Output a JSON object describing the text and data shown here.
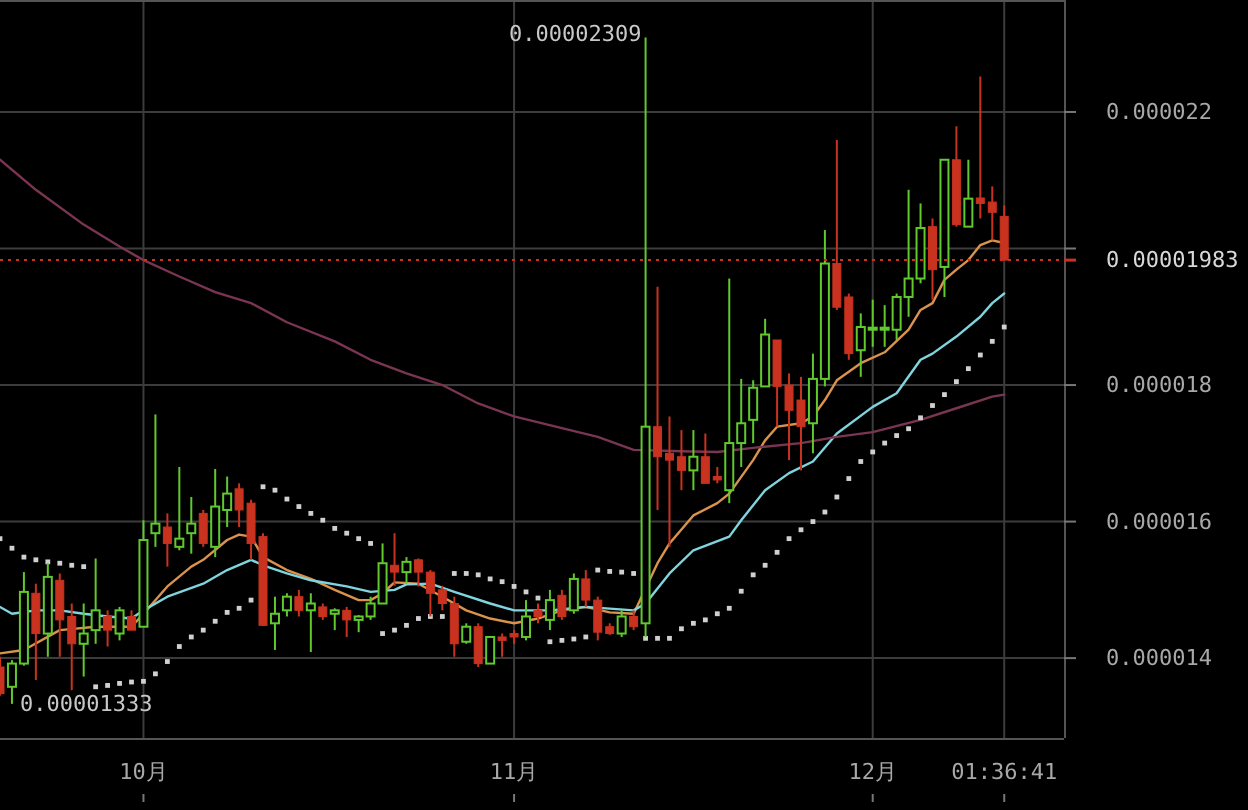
{
  "chart_data": {
    "type": "candlestick",
    "x": [
      "--09-19",
      "--09-20",
      "--09-21",
      "--09-22",
      "--09-23",
      "--09-24",
      "--09-25",
      "--09-26",
      "--09-27",
      "--09-28",
      "--09-29",
      "--09-30",
      "--10-01",
      "--10-02",
      "--10-03",
      "--10-04",
      "--10-05",
      "--10-06",
      "--10-07",
      "--10-08",
      "--10-09",
      "--10-10",
      "--10-11",
      "--10-12",
      "--10-13",
      "--10-14",
      "--10-15",
      "--10-16",
      "--10-17",
      "--10-18",
      "--10-19",
      "--10-20",
      "--10-21",
      "--10-22",
      "--10-23",
      "--10-24",
      "--10-25",
      "--10-26",
      "--10-27",
      "--10-28",
      "--10-29",
      "--10-30",
      "--10-31",
      "--11-01",
      "--11-02",
      "--11-03",
      "--11-04",
      "--11-05",
      "--11-06",
      "--11-07",
      "--11-08",
      "--11-09",
      "--11-10",
      "--11-11",
      "--11-12",
      "--11-13",
      "--11-14",
      "--11-15",
      "--11-16",
      "--11-17",
      "--11-18",
      "--11-19",
      "--11-20",
      "--11-21",
      "--11-22",
      "--11-23",
      "--11-24",
      "--11-25",
      "--11-26",
      "--11-27",
      "--11-28",
      "--11-29",
      "--11-30",
      "--12-01",
      "--12-02",
      "--12-03",
      "--12-04",
      "--12-05",
      "--12-06",
      "--12-07",
      "--12-08",
      "--12-09",
      "--12-10",
      "--12-11",
      "--12-12"
    ],
    "ohlc": [
      [
        1.387e-05,
        1.402e-05,
        1.345e-05,
        1.348e-05
      ],
      [
        1.358e-05,
        1.397e-05,
        1.333e-05,
        1.392e-05
      ],
      [
        1.392e-05,
        1.526e-05,
        1.389e-05,
        1.497e-05
      ],
      [
        1.495e-05,
        1.509e-05,
        1.368e-05,
        1.436e-05
      ],
      [
        1.436e-05,
        1.539e-05,
        1.402e-05,
        1.519e-05
      ],
      [
        1.514e-05,
        1.524e-05,
        1.402e-05,
        1.456e-05
      ],
      [
        1.461e-05,
        1.48e-05,
        1.353e-05,
        1.421e-05
      ],
      [
        1.421e-05,
        1.48e-05,
        1.373e-05,
        1.436e-05
      ],
      [
        1.441e-05,
        1.546e-05,
        1.421e-05,
        1.47e-05
      ],
      [
        1.461e-05,
        1.47e-05,
        1.417e-05,
        1.441e-05
      ],
      [
        1.436e-05,
        1.475e-05,
        1.426e-05,
        1.47e-05
      ],
      [
        1.461e-05,
        1.47e-05,
        1.441e-05,
        1.441e-05
      ],
      [
        1.446e-05,
        1.602e-05,
        1.446e-05,
        1.573e-05
      ],
      [
        1.583e-05,
        1.757e-05,
        1.563e-05,
        1.597e-05
      ],
      [
        1.592e-05,
        1.612e-05,
        1.534e-05,
        1.568e-05
      ],
      [
        1.563e-05,
        1.68e-05,
        1.558e-05,
        1.575e-05
      ],
      [
        1.583e-05,
        1.636e-05,
        1.553e-05,
        1.597e-05
      ],
      [
        1.612e-05,
        1.617e-05,
        1.563e-05,
        1.568e-05
      ],
      [
        1.563e-05,
        1.677e-05,
        1.548e-05,
        1.622e-05
      ],
      [
        1.617e-05,
        1.666e-05,
        1.592e-05,
        1.641e-05
      ],
      [
        1.648e-05,
        1.656e-05,
        1.592e-05,
        1.617e-05
      ],
      [
        1.627e-05,
        1.632e-05,
        1.544e-05,
        1.568e-05
      ],
      [
        1.578e-05,
        1.583e-05,
        1.448e-05,
        1.448e-05
      ],
      [
        1.451e-05,
        1.49e-05,
        1.412e-05,
        1.465e-05
      ],
      [
        1.47e-05,
        1.495e-05,
        1.461e-05,
        1.49e-05
      ],
      [
        1.49e-05,
        1.5e-05,
        1.461e-05,
        1.47e-05
      ],
      [
        1.47e-05,
        1.495e-05,
        1.409e-05,
        1.48e-05
      ],
      [
        1.475e-05,
        1.48e-05,
        1.456e-05,
        1.461e-05
      ],
      [
        1.465e-05,
        1.473e-05,
        1.441e-05,
        1.47e-05
      ],
      [
        1.47e-05,
        1.475e-05,
        1.431e-05,
        1.456e-05
      ],
      [
        1.456e-05,
        1.463e-05,
        1.438e-05,
        1.461e-05
      ],
      [
        1.461e-05,
        1.49e-05,
        1.456e-05,
        1.48e-05
      ],
      [
        1.48e-05,
        1.568e-05,
        1.48e-05,
        1.539e-05
      ],
      [
        1.536e-05,
        1.583e-05,
        1.506e-05,
        1.526e-05
      ],
      [
        1.526e-05,
        1.548e-05,
        1.509e-05,
        1.541e-05
      ],
      [
        1.544e-05,
        1.546e-05,
        1.505e-05,
        1.526e-05
      ],
      [
        1.526e-05,
        1.529e-05,
        1.461e-05,
        1.495e-05
      ],
      [
        1.5e-05,
        1.506e-05,
        1.47e-05,
        1.48e-05
      ],
      [
        1.48e-05,
        1.49e-05,
        1.402e-05,
        1.421e-05
      ],
      [
        1.424e-05,
        1.451e-05,
        1.421e-05,
        1.446e-05
      ],
      [
        1.446e-05,
        1.451e-05,
        1.387e-05,
        1.392e-05
      ],
      [
        1.392e-05,
        1.431e-05,
        1.392e-05,
        1.431e-05
      ],
      [
        1.431e-05,
        1.436e-05,
        1.402e-05,
        1.426e-05
      ],
      [
        1.436e-05,
        1.441e-05,
        1.421e-05,
        1.431e-05
      ],
      [
        1.431e-05,
        1.485e-05,
        1.426e-05,
        1.461e-05
      ],
      [
        1.47e-05,
        1.48e-05,
        1.451e-05,
        1.461e-05
      ],
      [
        1.456e-05,
        1.5e-05,
        1.441e-05,
        1.485e-05
      ],
      [
        1.492e-05,
        1.5e-05,
        1.456e-05,
        1.461e-05
      ],
      [
        1.47e-05,
        1.524e-05,
        1.465e-05,
        1.516e-05
      ],
      [
        1.516e-05,
        1.529e-05,
        1.475e-05,
        1.485e-05
      ],
      [
        1.485e-05,
        1.49e-05,
        1.426e-05,
        1.438e-05
      ],
      [
        1.446e-05,
        1.451e-05,
        1.434e-05,
        1.436e-05
      ],
      [
        1.436e-05,
        1.47e-05,
        1.431e-05,
        1.461e-05
      ],
      [
        1.461e-05,
        1.47e-05,
        1.441e-05,
        1.446e-05
      ],
      [
        1.451e-05,
        2.309e-05,
        1.431e-05,
        1.739e-05
      ],
      [
        1.739e-05,
        1.944e-05,
        1.617e-05,
        1.695e-05
      ],
      [
        1.7e-05,
        1.754e-05,
        1.563e-05,
        1.69e-05
      ],
      [
        1.695e-05,
        1.734e-05,
        1.646e-05,
        1.675e-05
      ],
      [
        1.675e-05,
        1.734e-05,
        1.646e-05,
        1.695e-05
      ],
      [
        1.695e-05,
        1.729e-05,
        1.656e-05,
        1.656e-05
      ],
      [
        1.666e-05,
        1.68e-05,
        1.656e-05,
        1.661e-05
      ],
      [
        1.646e-05,
        1.956e-05,
        1.627e-05,
        1.715e-05
      ],
      [
        1.715e-05,
        1.809e-05,
        1.68e-05,
        1.744e-05
      ],
      [
        1.749e-05,
        1.807e-05,
        1.715e-05,
        1.796e-05
      ],
      [
        1.798e-05,
        1.897e-05,
        1.798e-05,
        1.874e-05
      ],
      [
        1.866e-05,
        1.866e-05,
        1.739e-05,
        1.798e-05
      ],
      [
        1.8e-05,
        1.817e-05,
        1.69e-05,
        1.763e-05
      ],
      [
        1.778e-05,
        1.812e-05,
        1.675e-05,
        1.739e-05
      ],
      [
        1.744e-05,
        1.846e-05,
        1.7e-05,
        1.809e-05
      ],
      [
        1.809e-05,
        2.027e-05,
        1.798e-05,
        1.978e-05
      ],
      [
        1.978e-05,
        2.159e-05,
        1.91e-05,
        1.914e-05
      ],
      [
        1.929e-05,
        1.934e-05,
        1.837e-05,
        1.846e-05
      ],
      [
        1.851e-05,
        1.905e-05,
        1.812e-05,
        1.885e-05
      ],
      [
        1.882e-05,
        1.925e-05,
        1.856e-05,
        1.884e-05
      ],
      [
        1.882e-05,
        1.917e-05,
        1.856e-05,
        1.884e-05
      ],
      [
        1.881e-05,
        1.934e-05,
        1.866e-05,
        1.929e-05
      ],
      [
        1.929e-05,
        2.086e-05,
        1.9e-05,
        1.956e-05
      ],
      [
        1.956e-05,
        2.066e-05,
        1.949e-05,
        2.03e-05
      ],
      [
        2.032e-05,
        2.044e-05,
        1.925e-05,
        1.969e-05
      ],
      [
        1.973e-05,
        2.13e-05,
        1.929e-05,
        2.13e-05
      ],
      [
        2.13e-05,
        2.179e-05,
        2.032e-05,
        2.035e-05
      ],
      [
        2.032e-05,
        2.13e-05,
        2.032e-05,
        2.073e-05
      ],
      [
        2.074e-05,
        2.252e-05,
        2.044e-05,
        2.066e-05
      ],
      [
        2.068e-05,
        2.091e-05,
        2.012e-05,
        2.053e-05
      ],
      [
        2.047e-05,
        2.063e-05,
        1.983e-05,
        1.983e-05
      ]
    ],
    "colors": [
      "#c8321e",
      "#5fc92e",
      "#5fc92e",
      "#c8321e",
      "#5fc92e",
      "#c8321e",
      "#c8321e",
      "#5fc92e",
      "#5fc92e",
      "#c8321e",
      "#5fc92e",
      "#c8321e",
      "#5fc92e",
      "#5fc92e",
      "#c8321e",
      "#5fc92e",
      "#5fc92e",
      "#c8321e",
      "#5fc92e",
      "#5fc92e",
      "#c8321e",
      "#c8321e",
      "#c8321e",
      "#5fc92e",
      "#5fc92e",
      "#c8321e",
      "#5fc92e",
      "#c8321e",
      "#5fc92e",
      "#c8321e",
      "#5fc92e",
      "#5fc92e",
      "#5fc92e",
      "#c8321e",
      "#5fc92e",
      "#c8321e",
      "#c8321e",
      "#c8321e",
      "#c8321e",
      "#5fc92e",
      "#c8321e",
      "#5fc92e",
      "#c8321e",
      "#c8321e",
      "#5fc92e",
      "#c8321e",
      "#5fc92e",
      "#c8321e",
      "#5fc92e",
      "#c8321e",
      "#c8321e",
      "#c8321e",
      "#5fc92e",
      "#c8321e",
      "#5fc92e",
      "#c8321e",
      "#c8321e",
      "#c8321e",
      "#5fc92e",
      "#c8321e",
      "#c8321e",
      "#5fc92e",
      "#5fc92e",
      "#5fc92e",
      "#5fc92e",
      "#c8321e",
      "#c8321e",
      "#c8321e",
      "#5fc92e",
      "#5fc92e",
      "#c8321e",
      "#c8321e",
      "#5fc92e",
      "#5fc92e",
      "#5fc92e",
      "#5fc92e",
      "#5fc92e",
      "#5fc92e",
      "#c8321e",
      "#5fc92e",
      "#c8321e",
      "#5fc92e",
      "#c8321e",
      "#c8321e",
      "#c8321e"
    ],
    "series": [
      {
        "type": "line",
        "color": "#d9934c",
        "x": [
          "--09-19",
          "--09-21",
          "--09-24",
          "--09-27",
          "--09-30",
          "--10-01",
          "--10-03",
          "--10-05",
          "--10-06",
          "--10-08",
          "--10-09",
          "--10-10",
          "--10-11",
          "--10-13",
          "--10-15",
          "--10-17",
          "--10-19",
          "--10-20",
          "--10-21",
          "--10-22",
          "--10-24",
          "--10-26",
          "--10-28",
          "--10-30",
          "--11-01",
          "--11-03",
          "--11-05",
          "--11-07",
          "--11-09",
          "--11-11",
          "--11-13",
          "--11-14",
          "--11-16",
          "--11-18",
          "--11-19",
          "--11-21",
          "--11-22",
          "--11-23",
          "--11-25",
          "--11-26",
          "--11-27",
          "--11-28",
          "--11-30",
          "--12-02",
          "--12-04",
          "--12-05",
          "--12-06",
          "--12-07",
          "--12-08",
          "--12-09",
          "--12-10",
          "--12-11",
          "--12-12"
        ],
        "values": [
          1.407e-05,
          1.412e-05,
          1.441e-05,
          1.446e-05,
          1.446e-05,
          1.465e-05,
          1.505e-05,
          1.534e-05,
          1.544e-05,
          1.573e-05,
          1.581e-05,
          1.578e-05,
          1.548e-05,
          1.529e-05,
          1.516e-05,
          1.5e-05,
          1.485e-05,
          1.485e-05,
          1.495e-05,
          1.511e-05,
          1.509e-05,
          1.49e-05,
          1.47e-05,
          1.458e-05,
          1.451e-05,
          1.458e-05,
          1.47e-05,
          1.475e-05,
          1.467e-05,
          1.465e-05,
          1.539e-05,
          1.568e-05,
          1.609e-05,
          1.627e-05,
          1.641e-05,
          1.69e-05,
          1.719e-05,
          1.739e-05,
          1.744e-05,
          1.754e-05,
          1.778e-05,
          1.807e-05,
          1.832e-05,
          1.848e-05,
          1.881e-05,
          1.91e-05,
          1.92e-05,
          1.954e-05,
          1.969e-05,
          1.983e-05,
          2.005e-05,
          2.012e-05,
          2.008e-05
        ]
      },
      {
        "type": "line",
        "color": "#80d4de",
        "x": [
          "--09-19",
          "--09-20",
          "--09-22",
          "--09-24",
          "--09-26",
          "--09-28",
          "--09-30",
          "--10-01",
          "--10-03",
          "--10-06",
          "--10-08",
          "--10-10",
          "--10-11",
          "--10-13",
          "--10-15",
          "--10-18",
          "--10-20",
          "--10-22",
          "--10-23",
          "--10-25",
          "--10-27",
          "--10-30",
          "--11-01",
          "--11-04",
          "--11-07",
          "--11-11",
          "--11-12",
          "--11-14",
          "--11-16",
          "--11-19",
          "--11-20",
          "--11-22",
          "--11-24",
          "--11-26",
          "--11-28",
          "--12-01",
          "--12-03",
          "--12-05",
          "--12-06",
          "--12-08",
          "--12-10",
          "--12-11",
          "--12-12"
        ],
        "values": [
          1.475e-05,
          1.465e-05,
          1.47e-05,
          1.47e-05,
          1.465e-05,
          1.461e-05,
          1.458e-05,
          1.47e-05,
          1.49e-05,
          1.509e-05,
          1.529e-05,
          1.544e-05,
          1.536e-05,
          1.524e-05,
          1.514e-05,
          1.505e-05,
          1.497e-05,
          1.5e-05,
          1.508e-05,
          1.509e-05,
          1.497e-05,
          1.48e-05,
          1.47e-05,
          1.47e-05,
          1.475e-05,
          1.47e-05,
          1.48e-05,
          1.524e-05,
          1.558e-05,
          1.578e-05,
          1.602e-05,
          1.646e-05,
          1.671e-05,
          1.688e-05,
          1.729e-05,
          1.768e-05,
          1.788e-05,
          1.837e-05,
          1.846e-05,
          1.871e-05,
          1.9e-05,
          1.92e-05,
          1.934e-05
        ]
      },
      {
        "type": "line",
        "color": "#7a3552",
        "x": [
          "--09-19",
          "--09-22",
          "--09-26",
          "--09-29",
          "--10-01",
          "--10-04",
          "--10-07",
          "--10-10",
          "--10-13",
          "--10-17",
          "--10-20",
          "--10-23",
          "--10-26",
          "--10-29",
          "--11-01",
          "--11-05",
          "--11-08",
          "--11-11",
          "--11-15",
          "--11-18",
          "--11-21",
          "--11-25",
          "--11-28",
          "--12-01",
          "--12-05",
          "--12-08",
          "--12-11",
          "--12-12"
        ],
        "values": [
          2.13e-05,
          2.086e-05,
          2.035e-05,
          2.003e-05,
          1.983e-05,
          1.959e-05,
          1.936e-05,
          1.92e-05,
          1.892e-05,
          1.864e-05,
          1.837e-05,
          1.817e-05,
          1.8e-05,
          1.773e-05,
          1.754e-05,
          1.737e-05,
          1.724e-05,
          1.705e-05,
          1.703e-05,
          1.702e-05,
          1.708e-05,
          1.715e-05,
          1.724e-05,
          1.731e-05,
          1.749e-05,
          1.766e-05,
          1.783e-05,
          1.786e-05
        ]
      },
      {
        "type": "scatter",
        "marker": "square",
        "color": "#d0d0d0",
        "values": [
          1.575e-05,
          1.561e-05,
          1.548e-05,
          1.544e-05,
          1.541e-05,
          1.539e-05,
          1.536e-05,
          1.534e-05,
          1.358e-05,
          1.36e-05,
          1.363e-05,
          1.365e-05,
          1.366e-05,
          1.377e-05,
          1.395e-05,
          1.417e-05,
          1.431e-05,
          1.441e-05,
          1.454e-05,
          1.467e-05,
          1.473e-05,
          1.485e-05,
          1.651e-05,
          1.646e-05,
          1.633e-05,
          1.622e-05,
          1.612e-05,
          1.602e-05,
          1.59e-05,
          1.583e-05,
          1.575e-05,
          1.568e-05,
          1.436e-05,
          1.441e-05,
          1.448e-05,
          1.458e-05,
          1.461e-05,
          1.461e-05,
          1.524e-05,
          1.524e-05,
          1.522e-05,
          1.516e-05,
          1.512e-05,
          1.505e-05,
          1.497e-05,
          1.488e-05,
          1.424e-05,
          1.426e-05,
          1.428e-05,
          1.431e-05,
          1.529e-05,
          1.527e-05,
          1.526e-05,
          1.524e-05,
          1.429e-05,
          1.429e-05,
          1.429e-05,
          1.443e-05,
          1.451e-05,
          1.456e-05,
          1.465e-05,
          1.473e-05,
          1.498e-05,
          1.522e-05,
          1.536e-05,
          1.555e-05,
          1.575e-05,
          1.588e-05,
          1.6e-05,
          1.614e-05,
          1.636e-05,
          1.663e-05,
          1.688e-05,
          1.702e-05,
          1.715e-05,
          1.726e-05,
          1.736e-05,
          1.752e-05,
          1.77e-05,
          1.786e-05,
          1.805e-05,
          1.824e-05,
          1.844e-05,
          1.864e-05,
          1.885e-05
        ]
      }
    ],
    "xlim": [
      "--09-19",
      "--12-17"
    ],
    "xticks": [
      {
        "value": "--10-01",
        "label": "10月"
      },
      {
        "value": "--11-01",
        "label": "11月"
      },
      {
        "value": "--12-01",
        "label": "12月"
      },
      {
        "value": "--12-12",
        "label": "01:36:41"
      }
    ],
    "ylim": [
      1.283e-05,
      2.364e-05
    ],
    "yticks": [
      {
        "value": 1.4e-05,
        "label": "0.000014"
      },
      {
        "value": 1.6e-05,
        "label": "0.000016"
      },
      {
        "value": 1.8e-05,
        "label": "0.000018"
      },
      {
        "value": 2e-05,
        "label": null
      },
      {
        "value": 2.2e-05,
        "label": "0.000022"
      }
    ],
    "grid": true,
    "ref_lines": [
      {
        "axis": "y",
        "value": 1.983e-05,
        "label": "0.00001983",
        "color": "#c8321e",
        "line_style": "dotted"
      }
    ],
    "annotations": [
      {
        "text": "0.00002309",
        "x": "--11-12",
        "y": 2.309e-05
      },
      {
        "text": "0.00001333",
        "x": "--09-20",
        "y": 1.333e-05
      }
    ]
  }
}
